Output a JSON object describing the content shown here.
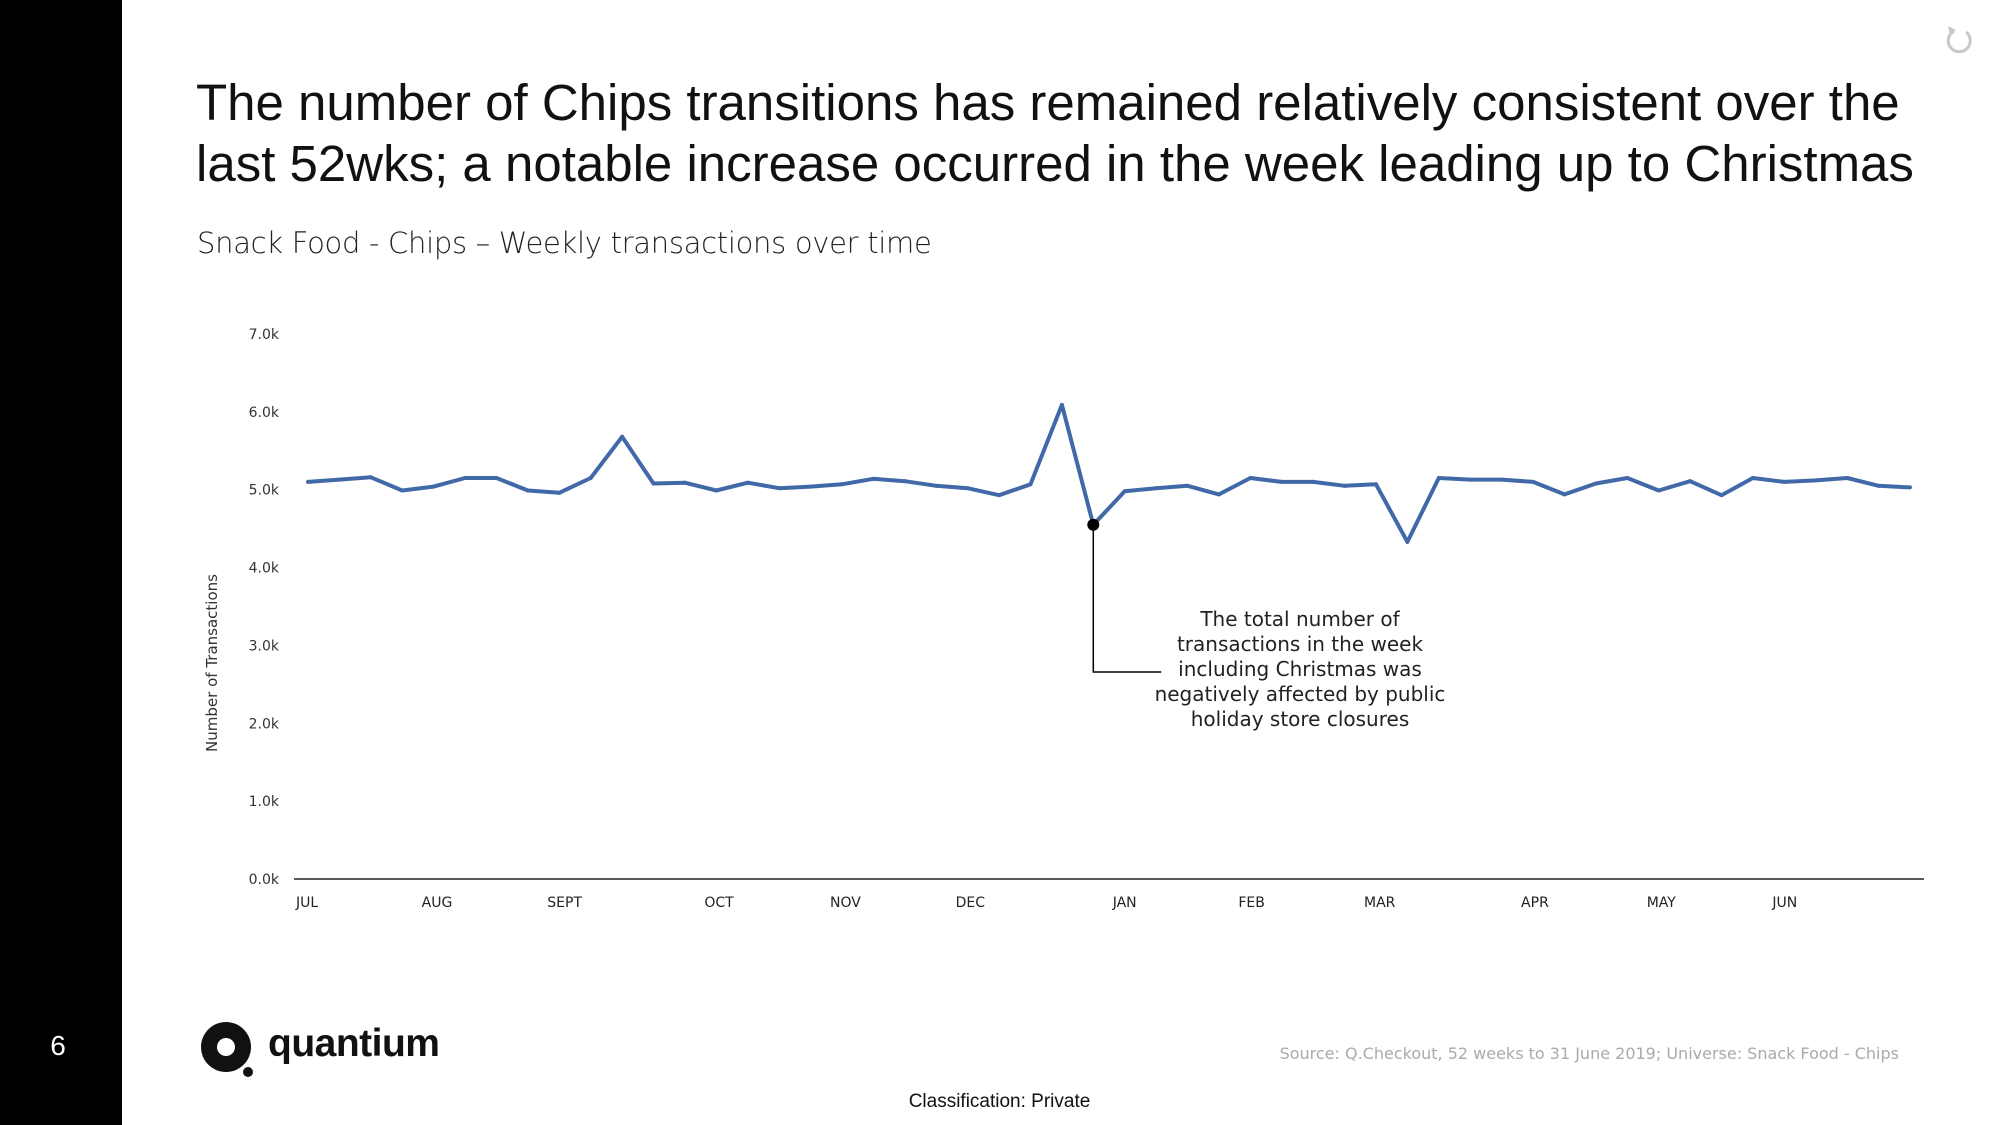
{
  "slide": {
    "page_number": "6",
    "title": "The number of Chips transitions has remained relatively consistent over the last 52wks; a notable increase occurred in the week leading up to Christmas",
    "subtitle": "Snack Food - Chips – Weekly transactions over time",
    "logo_text": "quantium",
    "source": "Source: Q.Checkout, 52 weeks to 31 June 2019; Universe: Snack Food - Chips",
    "classification": "Classification: Private",
    "icons": {
      "reset": "reset-icon",
      "logo": "quantium-logo-icon"
    },
    "colors": {
      "sidebar": "#000000",
      "line": "#4169a8",
      "source_text": "#aaaaaa"
    }
  },
  "chart_data": {
    "type": "line",
    "title": "",
    "xlabel": "",
    "ylabel": "Number of Transactions",
    "ylim": [
      0,
      7000
    ],
    "yticks": [
      "0.0k",
      "1.0k",
      "2.0k",
      "3.0k",
      "4.0k",
      "5.0k",
      "6.0k",
      "7.0k"
    ],
    "month_labels": [
      {
        "label": "JUL",
        "week": 0
      },
      {
        "label": "AUG",
        "week": 4
      },
      {
        "label": "SEPT",
        "week": 8
      },
      {
        "label": "OCT",
        "week": 13
      },
      {
        "label": "NOV",
        "week": 17
      },
      {
        "label": "DEC",
        "week": 21
      },
      {
        "label": "JAN",
        "week": 26
      },
      {
        "label": "FEB",
        "week": 30
      },
      {
        "label": "MAR",
        "week": 34
      },
      {
        "label": "APR",
        "week": 39
      },
      {
        "label": "MAY",
        "week": 43
      },
      {
        "label": "JUN",
        "week": 47
      }
    ],
    "series": [
      {
        "color": "#4169a8",
        "values": [
          5100,
          5130,
          5160,
          4990,
          5040,
          5150,
          5150,
          4990,
          4960,
          5150,
          5680,
          5080,
          5090,
          4990,
          5090,
          5020,
          5040,
          5070,
          5140,
          5110,
          5050,
          5020,
          4930,
          5070,
          6090,
          4550,
          4980,
          5020,
          5050,
          4940,
          5150,
          5100,
          5100,
          5050,
          5070,
          4330,
          5150,
          5130,
          5130,
          5100,
          4940,
          5080,
          5150,
          4990,
          5110,
          4930,
          5150,
          5100,
          5120,
          5150,
          5050,
          5030
        ]
      }
    ],
    "annotation": {
      "week": 25,
      "value": 4550,
      "text": [
        "The total number of",
        "transactions in the week",
        "including Christmas was",
        "negatively affected by public",
        "holiday store closures"
      ]
    }
  }
}
